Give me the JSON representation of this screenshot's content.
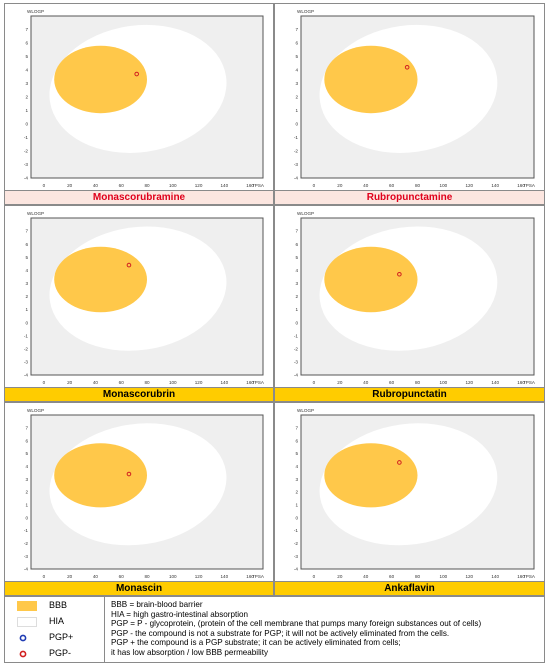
{
  "chart_data": [
    {
      "type": "scatter",
      "title": "Monascorubramine",
      "ylabel": "WLOGP",
      "xlabel": "TPSA",
      "xlim": [
        -10,
        170
      ],
      "ylim": [
        -4,
        8
      ],
      "point": {
        "x": 72,
        "y": 3.7,
        "class": "PGP-"
      },
      "caption_style": "pink"
    },
    {
      "type": "scatter",
      "title": "Rubropunctamine",
      "ylabel": "WLOGP",
      "xlabel": "TPSA",
      "xlim": [
        -10,
        170
      ],
      "ylim": [
        -4,
        8
      ],
      "point": {
        "x": 72,
        "y": 4.2,
        "class": "PGP-"
      },
      "caption_style": "pink"
    },
    {
      "type": "scatter",
      "title": "Monascorubrin",
      "ylabel": "WLOGP",
      "xlabel": "TPSA",
      "xlim": [
        -10,
        170
      ],
      "ylim": [
        -4,
        8
      ],
      "point": {
        "x": 66,
        "y": 4.4,
        "class": "PGP-"
      },
      "caption_style": "yellow"
    },
    {
      "type": "scatter",
      "title": "Rubropunctatin",
      "ylabel": "WLOGP",
      "xlabel": "TPSA",
      "xlim": [
        -10,
        170
      ],
      "ylim": [
        -4,
        8
      ],
      "point": {
        "x": 66,
        "y": 3.7,
        "class": "PGP-"
      },
      "caption_style": "yellow"
    },
    {
      "type": "scatter",
      "title": "Monascin",
      "ylabel": "WLOGP",
      "xlabel": "TPSA",
      "xlim": [
        -10,
        170
      ],
      "ylim": [
        -4,
        8
      ],
      "point": {
        "x": 66,
        "y": 3.4,
        "class": "PGP-"
      },
      "caption_style": "yellow"
    },
    {
      "type": "scatter",
      "title": "Ankaflavin",
      "ylabel": "WLOGP",
      "xlabel": "TPSA",
      "xlim": [
        -10,
        170
      ],
      "ylim": [
        -4,
        8
      ],
      "point": {
        "x": 66,
        "y": 4.3,
        "class": "PGP-"
      },
      "caption_style": "yellow"
    }
  ],
  "axes": {
    "x_ticks": [
      "0",
      "20",
      "40",
      "60",
      "80",
      "100",
      "120",
      "140",
      "160"
    ],
    "x_tick_values": [
      0,
      20,
      40,
      60,
      80,
      100,
      120,
      140,
      160
    ],
    "y_ticks": [
      "7",
      "6",
      "5",
      "4",
      "3",
      "2",
      "1",
      "0",
      "-1",
      "-2",
      "-3",
      "-4"
    ],
    "y_tick_values": [
      7,
      6,
      5,
      4,
      3,
      2,
      1,
      0,
      -1,
      -2,
      -3,
      -4
    ]
  },
  "regions": {
    "BBB": {
      "cx": 44,
      "cy": 3.3,
      "rx": 36,
      "ry": 2.5,
      "color": "#ffc84a"
    },
    "HIA": {
      "cx": 73,
      "cy": 2.6,
      "rx": 69,
      "ry": 4.7,
      "rotate": -8,
      "color": "#ffffff"
    }
  },
  "colors": {
    "plot_bg": "#efefef",
    "pgp_plus": "#1f3bb3",
    "pgp_minus": "#d11f1f",
    "caption_pink": "#fce6e0",
    "caption_pink_text": "#e0001b",
    "caption_yellow": "#ffcc00"
  },
  "legend": {
    "items": [
      {
        "symbol": "yellow-rect",
        "label": "BBB"
      },
      {
        "symbol": "white-rect",
        "label": "HIA"
      },
      {
        "symbol": "blue-circle",
        "label": "PGP+"
      },
      {
        "symbol": "red-circle",
        "label": "PGP-"
      }
    ],
    "notes": [
      "BBB  = brain-blood barrier",
      "HIA = high gastro-intestinal absorption",
      "PGP = P - glycoprotein, (protein of the cell membrane that pumps many foreign substances out of cells)",
      "PGP -  the compound is not a substrate for PGP; it will not be actively eliminated from the cells.",
      "PGP +  the compound is a PGP substrate; it can be actively eliminated from cells;",
      "it has low absorption / low BBB permeability"
    ]
  }
}
